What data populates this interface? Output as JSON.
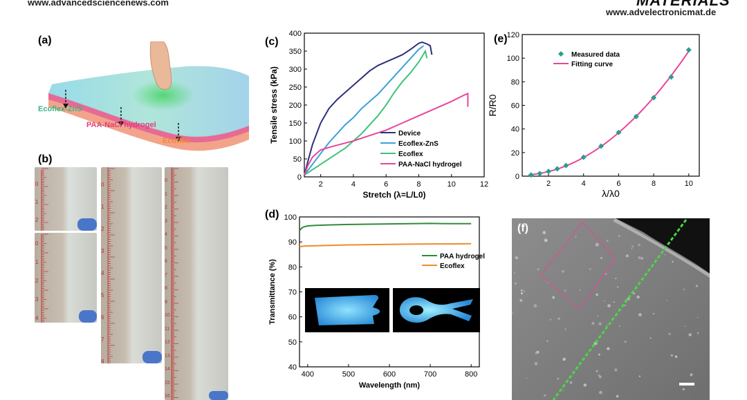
{
  "header": {
    "left_url": "www.advancedsciencenews.com",
    "brand": "MATERIALS",
    "right_url": "www.advelectronicmat.de"
  },
  "panels": {
    "a": {
      "label": "(a)",
      "layers": [
        "Ecoflex-ZnS",
        "PAA-NaCl hydrogel",
        "Ecoflex"
      ],
      "colors": {
        "ecoflex_zns": "#5cc8a4",
        "hydrogel": "#e0407a",
        "ecoflex": "#f08a2a"
      }
    },
    "b": {
      "label": "(b)",
      "ruler1_ticks": [
        "0",
        "1",
        "2"
      ],
      "ruler2_ticks": [
        "0",
        "1",
        "2",
        "3",
        "4"
      ],
      "ruler3_ticks": [
        "0",
        "1",
        "2",
        "3",
        "4",
        "5",
        "6",
        "7",
        "8"
      ],
      "ruler4_ticks": [
        "0",
        "1",
        "2",
        "3",
        "4",
        "5",
        "6",
        "7",
        "8",
        "9",
        "10",
        "11",
        "12",
        "13",
        "14",
        "15",
        "16"
      ]
    },
    "c": {
      "label": "(c)"
    },
    "d": {
      "label": "(d)"
    },
    "e": {
      "label": "(e)"
    },
    "f": {
      "label": "(f)"
    }
  },
  "chart_data": [
    {
      "id": "c",
      "type": "line",
      "xlabel": "Stretch (λ=L/L0)",
      "ylabel": "Tensile stress (kPa)",
      "xlim": [
        1,
        12
      ],
      "ylim": [
        0,
        400
      ],
      "xticks": [
        2,
        4,
        6,
        8,
        10,
        12
      ],
      "yticks": [
        0,
        50,
        100,
        150,
        200,
        250,
        300,
        350,
        400
      ],
      "legend_position": "lower-right",
      "series": [
        {
          "name": "Device",
          "color": "#2b2f7a",
          "x": [
            1.0,
            1.2,
            1.5,
            2.0,
            2.5,
            3.0,
            3.5,
            4.0,
            4.5,
            5.0,
            5.5,
            6.0,
            6.5,
            7.0,
            7.5,
            8.0,
            8.2,
            8.5,
            8.7,
            8.8
          ],
          "y": [
            5,
            40,
            90,
            150,
            190,
            215,
            235,
            255,
            275,
            295,
            310,
            320,
            330,
            340,
            355,
            372,
            375,
            370,
            365,
            340
          ]
        },
        {
          "name": "Ecoflex-ZnS",
          "color": "#3aa0dc",
          "x": [
            1.0,
            1.5,
            2.0,
            2.5,
            3.0,
            3.5,
            4.0,
            4.5,
            5.0,
            5.5,
            6.0,
            6.5,
            7.0,
            7.5,
            8.0,
            8.3
          ],
          "y": [
            5,
            35,
            65,
            95,
            120,
            145,
            165,
            190,
            210,
            230,
            255,
            280,
            305,
            330,
            355,
            365
          ]
        },
        {
          "name": "Ecoflex",
          "color": "#3ec27a",
          "x": [
            1.0,
            1.5,
            2.0,
            2.5,
            3.0,
            3.5,
            4.0,
            4.5,
            5.0,
            5.5,
            6.0,
            6.5,
            7.0,
            7.5,
            8.0,
            8.4,
            8.5
          ],
          "y": [
            5,
            20,
            35,
            50,
            65,
            80,
            100,
            120,
            145,
            170,
            200,
            235,
            265,
            290,
            320,
            350,
            330
          ]
        },
        {
          "name": "PAA-NaCl hydrogel",
          "color": "#e8459a",
          "x": [
            1.0,
            1.2,
            1.5,
            2.0,
            2.5,
            3.0,
            4.0,
            5.0,
            6.0,
            7.0,
            8.0,
            9.0,
            10.0,
            10.8,
            11.0,
            11.0
          ],
          "y": [
            5,
            30,
            55,
            75,
            82,
            88,
            100,
            115,
            130,
            150,
            170,
            190,
            210,
            228,
            232,
            195
          ]
        }
      ]
    },
    {
      "id": "d",
      "type": "line",
      "xlabel": "Wavelength (nm)",
      "ylabel": "Transmittance (%)",
      "xlim": [
        380,
        820
      ],
      "ylim": [
        40,
        100
      ],
      "xticks": [
        400,
        500,
        600,
        700,
        800
      ],
      "yticks": [
        40,
        50,
        60,
        70,
        80,
        90,
        100
      ],
      "legend_position": "right",
      "series": [
        {
          "name": "PAA hydrogel",
          "color": "#2e8b3a",
          "x": [
            380,
            385,
            390,
            400,
            420,
            450,
            500,
            550,
            600,
            650,
            700,
            750,
            800
          ],
          "y": [
            94.5,
            95.5,
            96.0,
            96.4,
            96.6,
            96.8,
            97.0,
            97.1,
            97.2,
            97.3,
            97.4,
            97.3,
            97.3
          ]
        },
        {
          "name": "Ecoflex",
          "color": "#f08a2a",
          "x": [
            380,
            390,
            400,
            450,
            500,
            550,
            600,
            650,
            700,
            750,
            800
          ],
          "y": [
            88.0,
            88.3,
            88.4,
            88.6,
            88.8,
            88.9,
            89.0,
            89.1,
            89.2,
            89.2,
            89.3
          ]
        }
      ]
    },
    {
      "id": "e",
      "type": "scatter",
      "xlabel": "λ/λ0",
      "ylabel": "R/R0",
      "xlim": [
        0.5,
        10.6
      ],
      "ylim": [
        0,
        120
      ],
      "xticks": [
        2,
        4,
        6,
        8,
        10
      ],
      "yticks": [
        0,
        20,
        40,
        60,
        80,
        100,
        120
      ],
      "legend_position": "top-left",
      "series": [
        {
          "name": "Measured data",
          "color": "#2a9d8f",
          "marker": "diamond",
          "x": [
            1,
            1.5,
            2,
            2.5,
            3,
            4,
            5,
            6,
            7,
            8,
            9,
            10
          ],
          "y": [
            1.0,
            2.2,
            4.0,
            6.2,
            9.0,
            16.0,
            25.5,
            37.0,
            50.5,
            66.5,
            84.0,
            107.0
          ]
        },
        {
          "name": "Fitting curve",
          "color": "#e8459a",
          "fit": "quadratic"
        }
      ]
    }
  ]
}
